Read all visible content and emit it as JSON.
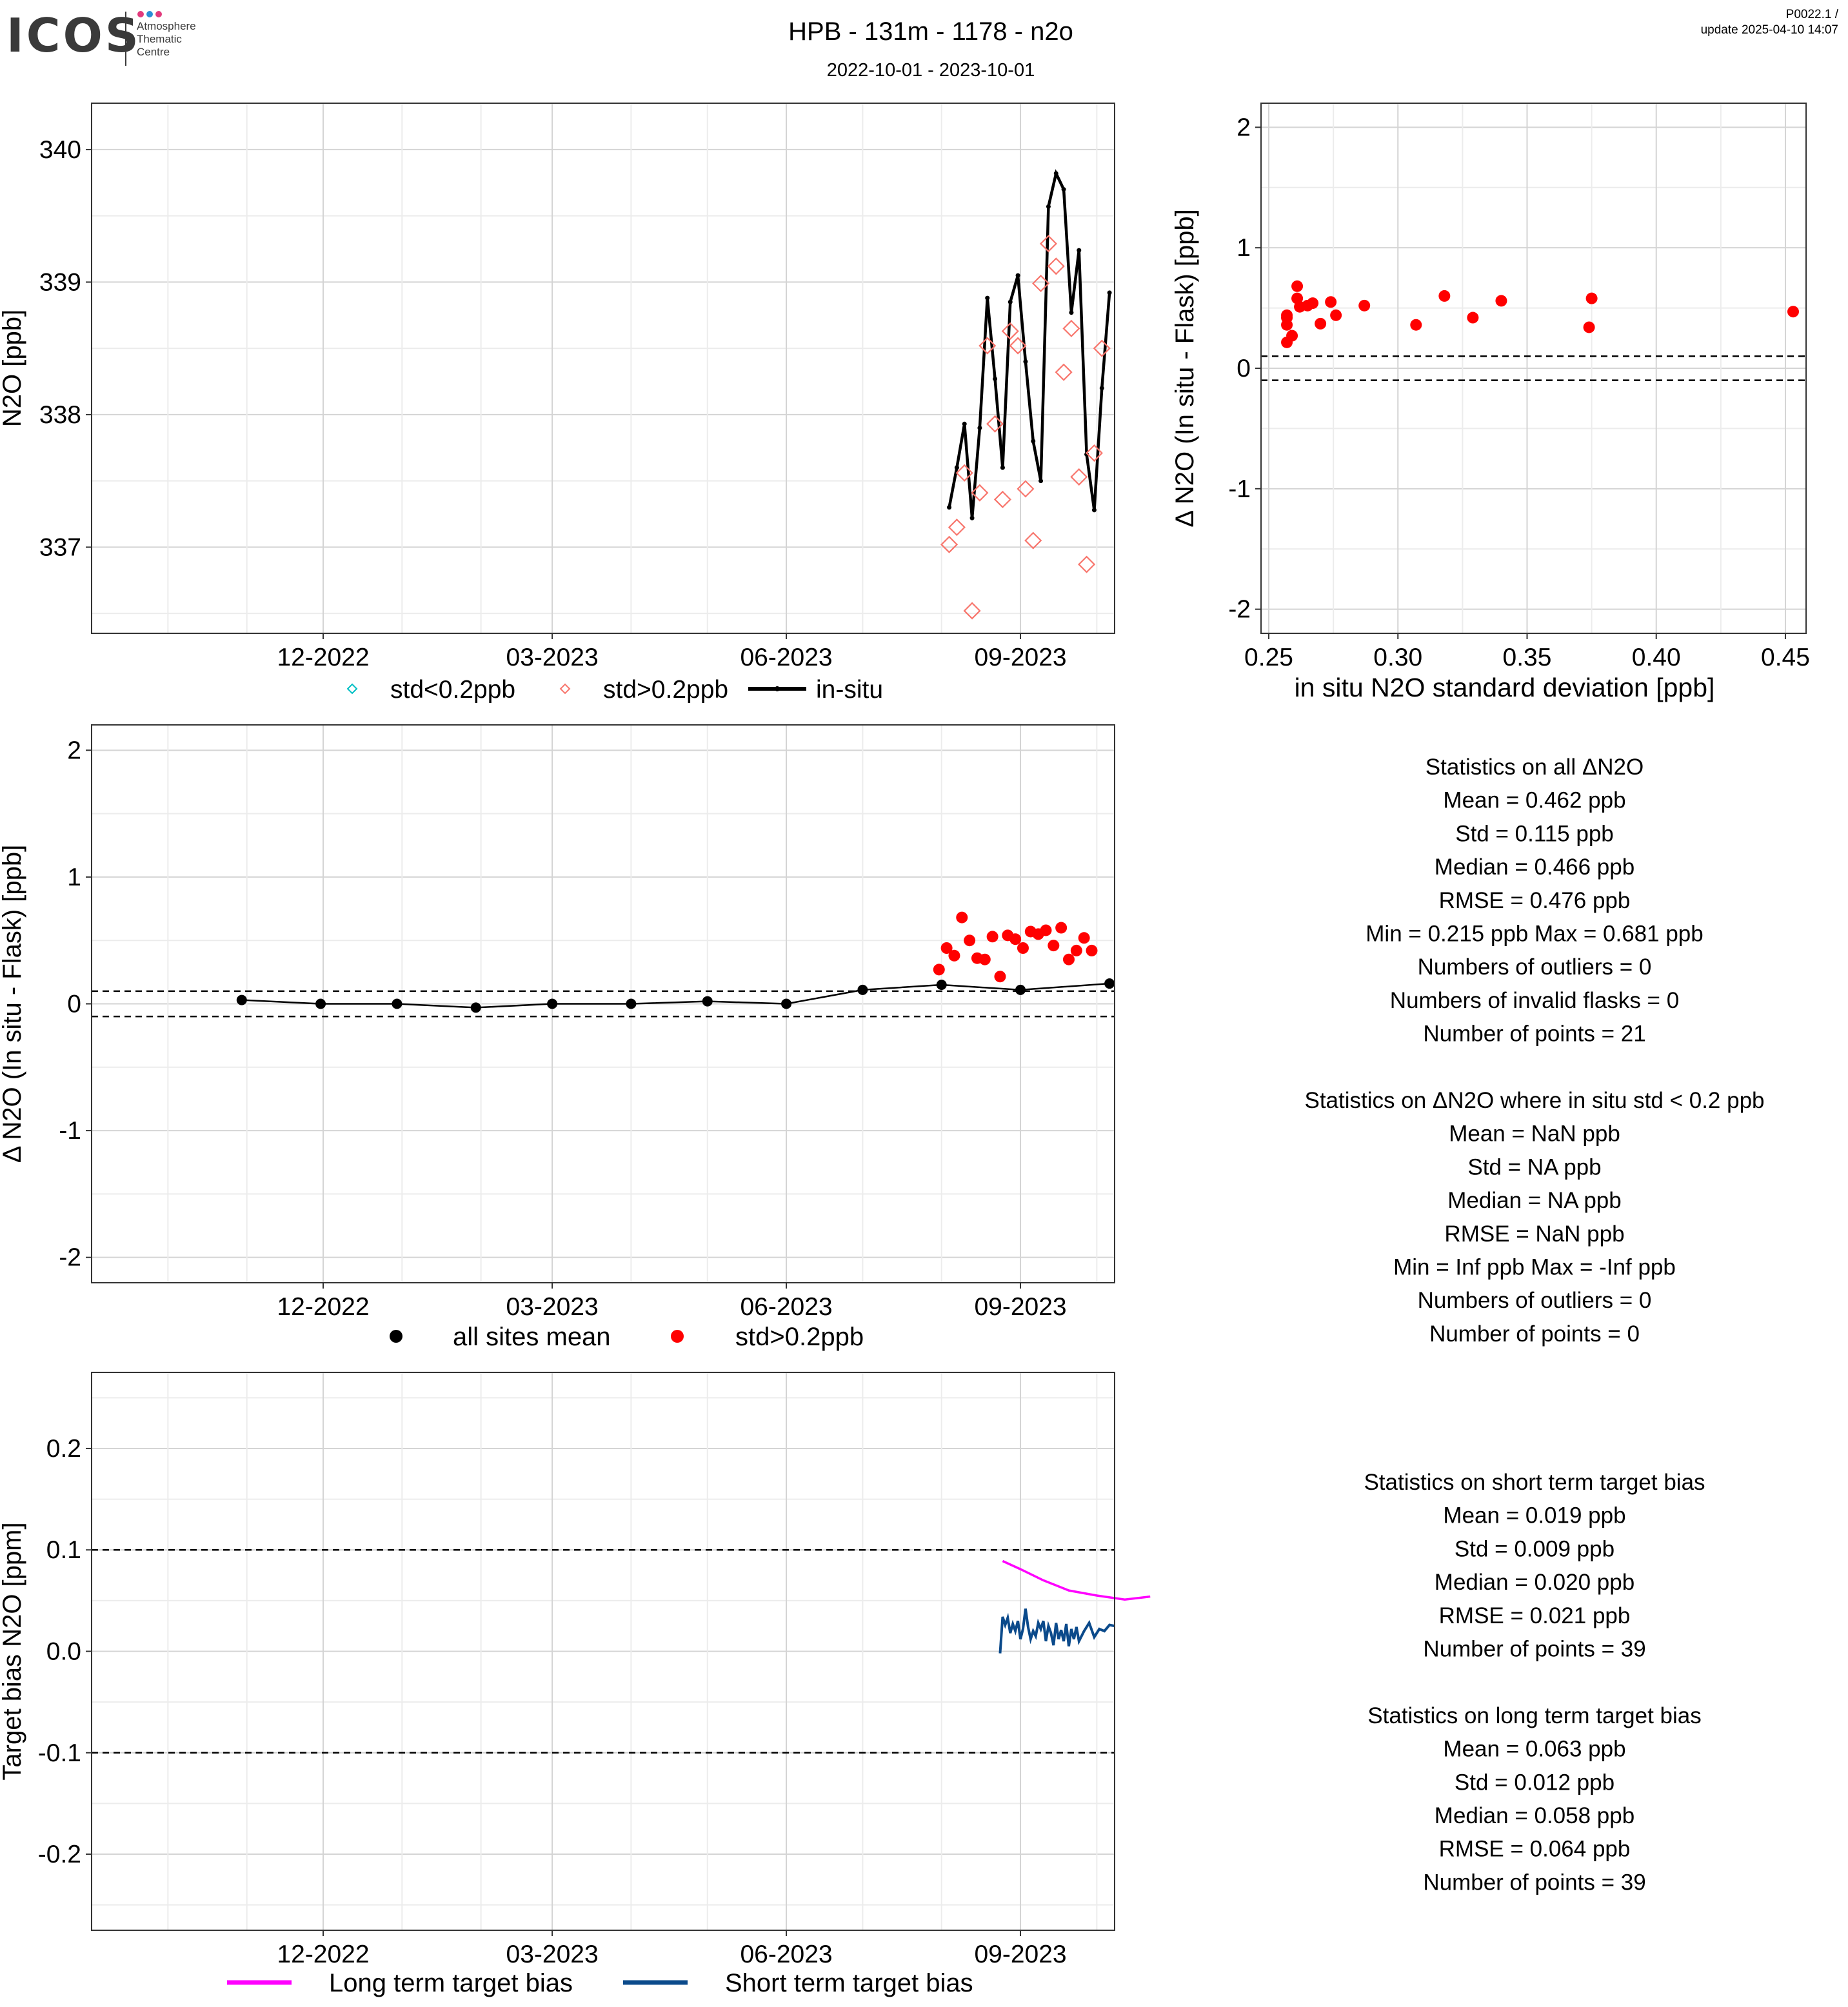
{
  "header": {
    "logo_word": "ICOS",
    "logo_sub": [
      "Atmosphere",
      "Thematic",
      "Centre"
    ],
    "title": "HPB - 131m - 1178 - n2o",
    "date_range": "2022-10-01 - 2023-10-01",
    "version": "P0022.1 /",
    "update": "update  2025-04-10 14:07"
  },
  "colors": {
    "insitu": "#000000",
    "flask_low_std": "#00bfc4",
    "flask_high_std": "#f8766d",
    "delta_high": "#ff0000",
    "sites_mean": "#000000",
    "long_term": "#ff00ff",
    "short_term": "#0b4a8b",
    "grid_major": "#d4d4d4",
    "grid_minor": "#ececec"
  },
  "chart_data": [
    {
      "id": "timeseries",
      "type": "line",
      "ylabel": "N2O [ppb]",
      "ylim": [
        336.35,
        340.35
      ],
      "yticks": [
        "337",
        "338",
        "339",
        "340"
      ],
      "xlim": [
        "2022-09-01",
        "2023-10-08"
      ],
      "xticks": [
        {
          "date": "2022-12-01",
          "label": "12-2022"
        },
        {
          "date": "2023-03-01",
          "label": "03-2023"
        },
        {
          "date": "2023-06-01",
          "label": "06-2023"
        },
        {
          "date": "2023-09-01",
          "label": "09-2023"
        }
      ],
      "legend": {
        "position": "bottom",
        "items": [
          "std<0.2ppb",
          "std>0.2ppb",
          "in-situ"
        ]
      },
      "series": [
        {
          "name": "in-situ",
          "points": [
            [
              "2023-08-04",
              337.3
            ],
            [
              "2023-08-07",
              337.6
            ],
            [
              "2023-08-10",
              337.93
            ],
            [
              "2023-08-13",
              337.22
            ],
            [
              "2023-08-16",
              337.9
            ],
            [
              "2023-08-19",
              338.88
            ],
            [
              "2023-08-22",
              338.27
            ],
            [
              "2023-08-25",
              337.6
            ],
            [
              "2023-08-28",
              338.85
            ],
            [
              "2023-08-31",
              339.05
            ],
            [
              "2023-09-03",
              338.4
            ],
            [
              "2023-09-06",
              337.8
            ],
            [
              "2023-09-09",
              337.5
            ],
            [
              "2023-09-12",
              339.57
            ],
            [
              "2023-09-15",
              339.82
            ],
            [
              "2023-09-18",
              339.7
            ],
            [
              "2023-09-21",
              338.77
            ],
            [
              "2023-09-24",
              339.24
            ],
            [
              "2023-09-27",
              337.7
            ],
            [
              "2023-09-30",
              337.28
            ],
            [
              "2023-10-03",
              338.2
            ],
            [
              "2023-10-06",
              338.92
            ]
          ]
        },
        {
          "name": "std>0.2ppb",
          "points": [
            [
              "2023-08-04",
              337.02
            ],
            [
              "2023-08-07",
              337.15
            ],
            [
              "2023-08-10",
              337.56
            ],
            [
              "2023-08-13",
              336.52
            ],
            [
              "2023-08-16",
              337.41
            ],
            [
              "2023-08-19",
              338.52
            ],
            [
              "2023-08-22",
              337.93
            ],
            [
              "2023-08-25",
              337.36
            ],
            [
              "2023-08-28",
              338.63
            ],
            [
              "2023-08-31",
              338.52
            ],
            [
              "2023-09-03",
              337.44
            ],
            [
              "2023-09-06",
              337.05
            ],
            [
              "2023-09-09",
              338.99
            ],
            [
              "2023-09-12",
              339.29
            ],
            [
              "2023-09-15",
              339.12
            ],
            [
              "2023-09-18",
              338.32
            ],
            [
              "2023-09-21",
              338.65
            ],
            [
              "2023-09-24",
              337.53
            ],
            [
              "2023-09-27",
              336.87
            ],
            [
              "2023-09-30",
              337.71
            ],
            [
              "2023-10-03",
              338.5
            ]
          ]
        },
        {
          "name": "std<0.2ppb",
          "points": []
        }
      ]
    },
    {
      "id": "scatter_std",
      "type": "scatter",
      "xlabel": "in situ N2O standard deviation [ppb]",
      "ylabel": "Δ N2O (In situ - Flask) [ppb]",
      "xlim": [
        0.247,
        0.458
      ],
      "ylim": [
        -2.2,
        2.2
      ],
      "xticks": [
        "0.25",
        "0.30",
        "0.35",
        "0.40",
        "0.45"
      ],
      "yticks": [
        "-2",
        "-1",
        "0",
        "1",
        "2"
      ],
      "hlines": [
        0.1,
        -0.1
      ],
      "points": [
        [
          0.257,
          0.215
        ],
        [
          0.257,
          0.36
        ],
        [
          0.257,
          0.42
        ],
        [
          0.257,
          0.44
        ],
        [
          0.259,
          0.27
        ],
        [
          0.261,
          0.681
        ],
        [
          0.261,
          0.58
        ],
        [
          0.262,
          0.51
        ],
        [
          0.265,
          0.52
        ],
        [
          0.267,
          0.54
        ],
        [
          0.27,
          0.37
        ],
        [
          0.274,
          0.55
        ],
        [
          0.276,
          0.44
        ],
        [
          0.287,
          0.52
        ],
        [
          0.307,
          0.36
        ],
        [
          0.318,
          0.6
        ],
        [
          0.329,
          0.42
        ],
        [
          0.34,
          0.56
        ],
        [
          0.374,
          0.34
        ],
        [
          0.375,
          0.58
        ],
        [
          0.453,
          0.47
        ]
      ]
    },
    {
      "id": "delta_time",
      "type": "scatter",
      "ylabel": "Δ N2O (In situ - Flask) [ppb]",
      "ylim": [
        -2.2,
        2.2
      ],
      "yticks": [
        "-2",
        "-1",
        "0",
        "1",
        "2"
      ],
      "xlim": [
        "2022-09-01",
        "2023-10-08"
      ],
      "xticks": [
        {
          "date": "2022-12-01",
          "label": "12-2022"
        },
        {
          "date": "2023-03-01",
          "label": "03-2023"
        },
        {
          "date": "2023-06-01",
          "label": "06-2023"
        },
        {
          "date": "2023-09-01",
          "label": "09-2023"
        }
      ],
      "hlines": [
        0.1,
        -0.1
      ],
      "legend": {
        "position": "bottom",
        "items": [
          "all sites mean",
          "std>0.2ppb"
        ]
      },
      "series": [
        {
          "name": "all sites mean",
          "points": [
            [
              "2022-10-30",
              0.03
            ],
            [
              "2022-11-30",
              0.0
            ],
            [
              "2022-12-30",
              0.0
            ],
            [
              "2023-01-30",
              -0.03
            ],
            [
              "2023-03-01",
              0.0
            ],
            [
              "2023-04-01",
              0.0
            ],
            [
              "2023-05-01",
              0.02
            ],
            [
              "2023-06-01",
              0.0
            ],
            [
              "2023-07-01",
              0.11
            ],
            [
              "2023-08-01",
              0.15
            ],
            [
              "2023-09-01",
              0.11
            ],
            [
              "2023-10-06",
              0.16
            ]
          ]
        },
        {
          "name": "std>0.2ppb",
          "points": [
            [
              "2023-07-31",
              0.27
            ],
            [
              "2023-08-03",
              0.44
            ],
            [
              "2023-08-06",
              0.38
            ],
            [
              "2023-08-09",
              0.681
            ],
            [
              "2023-08-12",
              0.5
            ],
            [
              "2023-08-15",
              0.36
            ],
            [
              "2023-08-18",
              0.35
            ],
            [
              "2023-08-21",
              0.53
            ],
            [
              "2023-08-24",
              0.215
            ],
            [
              "2023-08-27",
              0.54
            ],
            [
              "2023-08-30",
              0.51
            ],
            [
              "2023-09-02",
              0.44
            ],
            [
              "2023-09-05",
              0.57
            ],
            [
              "2023-09-08",
              0.55
            ],
            [
              "2023-09-11",
              0.58
            ],
            [
              "2023-09-14",
              0.46
            ],
            [
              "2023-09-17",
              0.6
            ],
            [
              "2023-09-20",
              0.35
            ],
            [
              "2023-09-23",
              0.42
            ],
            [
              "2023-09-26",
              0.52
            ],
            [
              "2023-09-29",
              0.42
            ]
          ]
        }
      ]
    },
    {
      "id": "target_bias",
      "type": "line",
      "ylabel": "Target bias N2O [ppm]",
      "ylim": [
        -0.275,
        0.275
      ],
      "yticks": [
        "-0.2",
        "-0.1",
        "0.0",
        "0.1",
        "0.2"
      ],
      "xlim": [
        "2022-09-01",
        "2023-10-08"
      ],
      "xticks": [
        {
          "date": "2022-12-01",
          "label": "12-2022"
        },
        {
          "date": "2023-03-01",
          "label": "03-2023"
        },
        {
          "date": "2023-06-01",
          "label": "06-2023"
        },
        {
          "date": "2023-09-01",
          "label": "09-2023"
        }
      ],
      "hlines": [
        0.1,
        -0.1
      ],
      "legend": {
        "position": "bottom",
        "items": [
          "Long term target bias",
          "Short term target bias"
        ]
      },
      "series": [
        {
          "name": "Long term target bias",
          "points": [
            [
              "2023-08-25",
              0.089
            ],
            [
              "2023-09-01",
              0.081
            ],
            [
              "2023-09-10",
              0.07
            ],
            [
              "2023-09-20",
              0.06
            ],
            [
              "2023-10-01",
              0.055
            ],
            [
              "2023-10-12",
              0.051
            ],
            [
              "2023-10-22",
              0.054
            ]
          ]
        },
        {
          "name": "Short term target bias",
          "points": [
            [
              "2023-08-24",
              -0.002
            ],
            [
              "2023-08-25",
              0.034
            ],
            [
              "2023-08-26",
              0.026
            ],
            [
              "2023-08-27",
              0.033
            ],
            [
              "2023-08-28",
              0.018
            ],
            [
              "2023-08-29",
              0.027
            ],
            [
              "2023-08-30",
              0.02
            ],
            [
              "2023-08-31",
              0.03
            ],
            [
              "2023-09-01",
              0.012
            ],
            [
              "2023-09-02",
              0.022
            ],
            [
              "2023-09-03",
              0.042
            ],
            [
              "2023-09-04",
              0.024
            ],
            [
              "2023-09-05",
              0.012
            ],
            [
              "2023-09-06",
              0.02
            ],
            [
              "2023-09-07",
              0.015
            ],
            [
              "2023-09-08",
              0.028
            ],
            [
              "2023-09-09",
              0.022
            ],
            [
              "2023-09-10",
              0.03
            ],
            [
              "2023-09-11",
              0.01
            ],
            [
              "2023-09-12",
              0.025
            ],
            [
              "2023-09-13",
              0.018
            ],
            [
              "2023-09-14",
              0.006
            ],
            [
              "2023-09-15",
              0.028
            ],
            [
              "2023-09-16",
              0.012
            ],
            [
              "2023-09-17",
              0.021
            ],
            [
              "2023-09-18",
              0.01
            ],
            [
              "2023-09-19",
              0.027
            ],
            [
              "2023-09-20",
              0.005
            ],
            [
              "2023-09-21",
              0.022
            ],
            [
              "2023-09-22",
              0.012
            ],
            [
              "2023-09-23",
              0.024
            ],
            [
              "2023-09-24",
              0.01
            ],
            [
              "2023-09-26",
              0.02
            ],
            [
              "2023-09-28",
              0.028
            ],
            [
              "2023-09-30",
              0.014
            ],
            [
              "2023-10-02",
              0.022
            ],
            [
              "2023-10-04",
              0.02
            ],
            [
              "2023-10-06",
              0.026
            ],
            [
              "2023-10-08",
              0.025
            ]
          ]
        }
      ]
    }
  ],
  "stats_delta": [
    "Statistics on all ΔN2O",
    "Mean =  0.462 ppb",
    "Std =  0.115 ppb",
    "Median =  0.466 ppb",
    "RMSE =  0.476 ppb",
    "Min =  0.215 ppb Max =  0.681 ppb",
    "Numbers of outliers =  0",
    "Numbers of invalid flasks =  0",
    "Number of points =  21",
    "",
    "Statistics on ΔN2O where in situ std < 0.2 ppb",
    "Mean =  NaN ppb",
    "Std =  NA ppb",
    "Median =  NA ppb",
    "RMSE =  NaN ppb",
    "Min =  Inf ppb Max =  -Inf ppb",
    "Numbers of outliers =  0",
    "Number of points =  0"
  ],
  "stats_target": [
    "Statistics on short term target bias",
    "Mean =  0.019 ppb",
    "Std =  0.009 ppb",
    "Median =  0.020 ppb",
    "RMSE =  0.021 ppb",
    "Number of points =  39",
    "",
    "Statistics on long term target bias",
    "Mean =  0.063 ppb",
    "Std =  0.012 ppb",
    "Median =  0.058 ppb",
    "RMSE =  0.064 ppb",
    "Number of points =  39"
  ]
}
